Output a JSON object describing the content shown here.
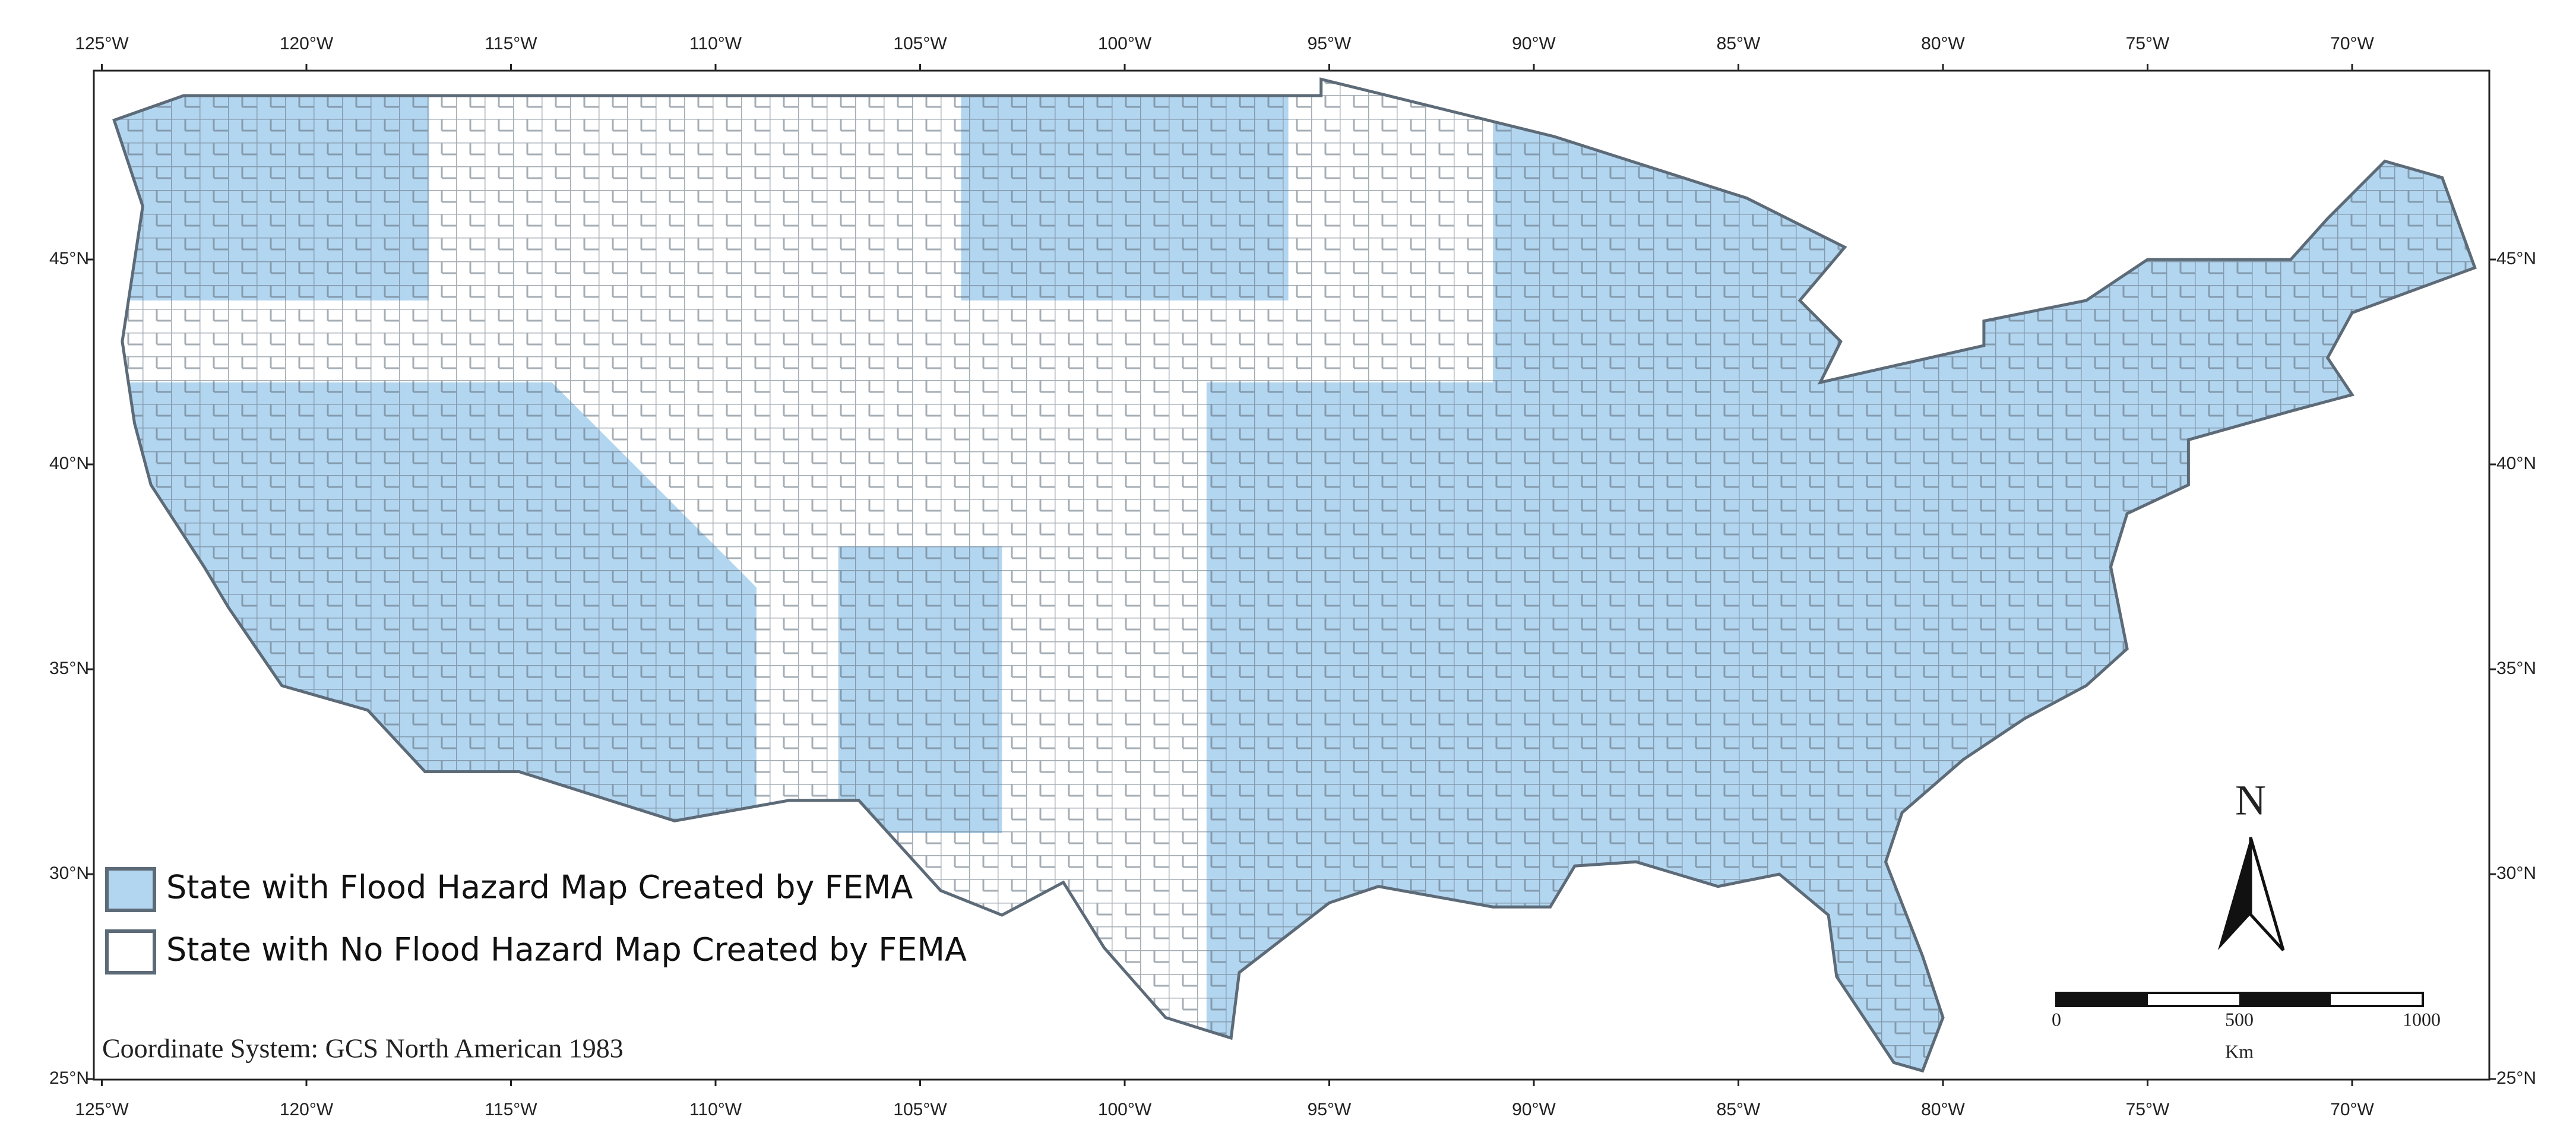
{
  "map": {
    "lon_ticks": [
      "125°W",
      "120°W",
      "115°W",
      "110°W",
      "105°W",
      "100°W",
      "95°W",
      "90°W",
      "85°W",
      "80°W",
      "75°W",
      "70°W"
    ],
    "lat_ticks": [
      "45°N",
      "40°N",
      "35°N",
      "30°N",
      "25°N"
    ],
    "legend": [
      {
        "label": "State with Flood Hazard Map Created by FEMA",
        "color": "#b3d6f0"
      },
      {
        "label": "State with No Flood Hazard Map Created by FEMA",
        "color": "#ffffff"
      }
    ],
    "coordinate_system": "Coordinate System: GCS North American 1983",
    "north": "N",
    "scale": {
      "labels": [
        "0",
        "500",
        "1000"
      ],
      "unit": "Km"
    }
  }
}
